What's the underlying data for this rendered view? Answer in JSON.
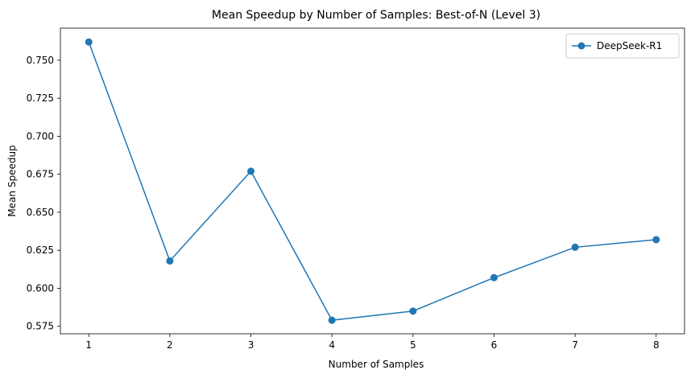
{
  "chart_data": {
    "type": "line",
    "title": "Mean Speedup by Number of Samples: Best-of-N (Level 3)",
    "xlabel": "Number of Samples",
    "ylabel": "Mean Speedup",
    "x": [
      1,
      2,
      3,
      4,
      5,
      6,
      7,
      8
    ],
    "series": [
      {
        "name": "DeepSeek-R1",
        "values": [
          0.762,
          0.618,
          0.677,
          0.579,
          0.585,
          0.607,
          0.627,
          0.632
        ],
        "color": "#1f77b4",
        "marker": "circle"
      }
    ],
    "xlim": [
      0.65,
      8.35
    ],
    "ylim": [
      0.5701,
      0.7711
    ],
    "xticks": [
      1,
      2,
      3,
      4,
      5,
      6,
      7,
      8
    ],
    "yticks": [
      0.575,
      0.6,
      0.625,
      0.65,
      0.675,
      0.7,
      0.725,
      0.75
    ],
    "ytick_labels": [
      "0.575",
      "0.600",
      "0.625",
      "0.650",
      "0.675",
      "0.700",
      "0.725",
      "0.750"
    ],
    "grid": false,
    "legend_position": "top-right"
  }
}
